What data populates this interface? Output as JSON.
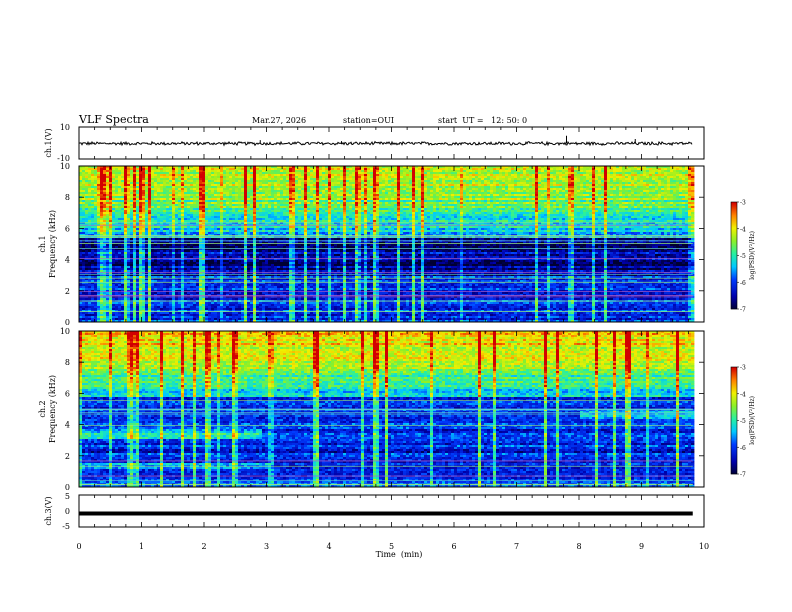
{
  "header": {
    "title": "VLF Spectra",
    "date": "Mar.27, 2026",
    "station": "station=OUI",
    "start_ut": "start  UT =   12: 50: 0"
  },
  "chart_data": [
    {
      "type": "line",
      "panel": "ch1-waveform",
      "ylabel": "ch.1(V)",
      "ylim": [
        -10,
        10
      ],
      "yticks": [
        "10",
        "-10"
      ],
      "baseline_value": -0.3,
      "noise_amplitude": 1.0,
      "spikes": [
        {
          "x": 7.8,
          "y": 4.5
        },
        {
          "x": 8.9,
          "y": 2.5
        },
        {
          "x": 2.9,
          "y": 1.8
        },
        {
          "x": 4.2,
          "y": 1.2
        }
      ]
    },
    {
      "type": "heatmap",
      "panel": "ch1-spectrogram",
      "ylabel": "ch.1\nFrequency (kHz)",
      "ylim": [
        0,
        10
      ],
      "yticks": [
        "0",
        "2",
        "4",
        "6",
        "8",
        "10"
      ],
      "xlim": [
        0,
        9.82
      ],
      "colorbar": {
        "label": "log(PSD)(V²/Hz)",
        "range": [
          -7,
          -3
        ],
        "ticks": [
          "-3",
          "-4",
          "-5",
          "-6",
          "-7"
        ]
      }
    },
    {
      "type": "heatmap",
      "panel": "ch2-spectrogram",
      "ylabel": "ch.2\nFrequency (kHz)",
      "ylim": [
        0,
        10
      ],
      "yticks": [
        "0",
        "2",
        "4",
        "6",
        "8",
        "10"
      ],
      "xlim": [
        0,
        9.82
      ],
      "colorbar": {
        "label": "log(PSD)(V²/Hz)",
        "range": [
          -7,
          -3
        ],
        "ticks": [
          "-3",
          "-4",
          "-5",
          "-6",
          "-7"
        ]
      }
    },
    {
      "type": "line",
      "panel": "ch3-waveform",
      "ylabel": "ch.3(V)",
      "ylim": [
        -5,
        5
      ],
      "yticks": [
        "5",
        "0",
        "-5"
      ],
      "baseline_value": -0.8
    }
  ],
  "xaxis": {
    "label": "Time  (min)",
    "range": [
      0,
      10
    ],
    "ticks": [
      "0",
      "1",
      "2",
      "3",
      "4",
      "5",
      "6",
      "7",
      "8",
      "9",
      "10"
    ]
  }
}
